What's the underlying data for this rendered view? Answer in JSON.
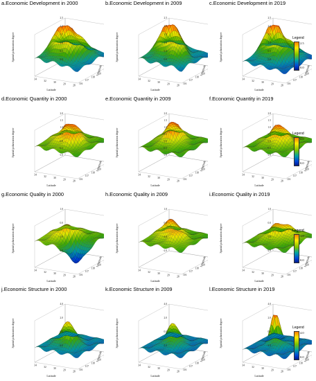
{
  "figure": {
    "panels": [
      {
        "title": "a.Economic Development in 2000",
        "z_ticks": [
          "2.5",
          "2.0",
          "1.5",
          "1.0",
          "0.5",
          "0.0"
        ]
      },
      {
        "title": "b.Economic Development in 2009",
        "z_ticks": [
          "2.5",
          "2.0",
          "1.5",
          "1.0",
          "0.5",
          "0.0"
        ]
      },
      {
        "title": "c.Economic Development in 2019",
        "z_ticks": [
          "2.5",
          "2.0",
          "1.5",
          "1.0",
          "0.5",
          "0.0"
        ]
      },
      {
        "title": "d.Economic Quantity in 2000",
        "z_ticks": [
          "2.0",
          "1.5",
          "1.0",
          "0.5",
          "0.0",
          "-0.5",
          "-1.0"
        ]
      },
      {
        "title": "e.Economic Quantity in 2009",
        "z_ticks": [
          "2.0",
          "1.5",
          "1.0",
          "0.5",
          "0.0",
          "-0.5",
          "-1.0"
        ]
      },
      {
        "title": "f.Economic Quantity in 2019",
        "z_ticks": [
          "2.0",
          "1.5",
          "1.0",
          "0.5",
          "0.0",
          "-0.5",
          "-1.0"
        ]
      },
      {
        "title": "g.Economic Quality in 2000",
        "z_ticks": [
          "1.0",
          "0.0",
          "-1.0",
          "-2.0"
        ]
      },
      {
        "title": "h.Economic Quality in 2009",
        "z_ticks": [
          "1.0",
          "0.0",
          "-1.0",
          "-2.0"
        ]
      },
      {
        "title": "i.Economic Quality in 2019",
        "z_ticks": [
          "1.0",
          "0.0",
          "-1.0",
          "-2.0"
        ]
      },
      {
        "title": "j.Economic Structure in 2000",
        "z_ticks": [
          "4.0",
          "2.0",
          "0.0",
          "-2.0"
        ]
      },
      {
        "title": "k.Economic Structure in 2009",
        "z_ticks": [
          "4.0",
          "2.0",
          "0.0",
          "-2.0"
        ]
      },
      {
        "title": "l.Economic Structure in 2019",
        "z_ticks": [
          "4.0",
          "2.0",
          "0.0",
          "-2.0"
        ]
      }
    ],
    "legends": [
      {
        "title": "Legend",
        "max": "2.5",
        "min": "0.0"
      },
      {
        "title": "Legend",
        "max": "2.0",
        "min": "0.0"
      },
      {
        "title": "Legend",
        "max": "1.0",
        "min": "0.0"
      },
      {
        "title": "Legend",
        "max": "4.0",
        "min": "0.0"
      }
    ],
    "axis_labels": {
      "z": "Spatial polarization degree",
      "x": "Latitude",
      "y": "Longitude"
    },
    "latitude_ticks": [
      "34",
      "32",
      "30",
      "29",
      "28"
    ],
    "longitude_ticks": [
      "122",
      "121",
      "120",
      "118",
      "117",
      "116"
    ]
  },
  "chart_data": [
    {
      "type": "surface",
      "title": "a.Economic Development in 2000",
      "xlabel": "Latitude",
      "ylabel": "Longitude",
      "zlabel": "Spatial polarization degree",
      "zlim": [
        0.0,
        2.5
      ],
      "color_range": [
        0.0,
        2.5
      ]
    },
    {
      "type": "surface",
      "title": "b.Economic Development in 2009",
      "xlabel": "Latitude",
      "ylabel": "Longitude",
      "zlabel": "Spatial polarization degree",
      "zlim": [
        0.0,
        2.5
      ],
      "color_range": [
        0.0,
        2.5
      ]
    },
    {
      "type": "surface",
      "title": "c.Economic Development in 2019",
      "xlabel": "Latitude",
      "ylabel": "Longitude",
      "zlabel": "Spatial polarization degree",
      "zlim": [
        0.0,
        2.5
      ],
      "color_range": [
        0.0,
        2.5
      ]
    },
    {
      "type": "surface",
      "title": "d.Economic Quantity in 2000",
      "xlabel": "Latitude",
      "ylabel": "Longitude",
      "zlabel": "Spatial polarization degree",
      "zlim": [
        -1.0,
        2.0
      ],
      "color_range": [
        0.0,
        2.0
      ]
    },
    {
      "type": "surface",
      "title": "e.Economic Quantity in 2009",
      "xlabel": "Latitude",
      "ylabel": "Longitude",
      "zlabel": "Spatial polarization degree",
      "zlim": [
        -1.0,
        2.0
      ],
      "color_range": [
        0.0,
        2.0
      ]
    },
    {
      "type": "surface",
      "title": "f.Economic Quantity in 2019",
      "xlabel": "Latitude",
      "ylabel": "Longitude",
      "zlabel": "Spatial polarization degree",
      "zlim": [
        -1.0,
        2.0
      ],
      "color_range": [
        0.0,
        2.0
      ]
    },
    {
      "type": "surface",
      "title": "g.Economic Quality in 2000",
      "xlabel": "Latitude",
      "ylabel": "Longitude",
      "zlabel": "Spatial polarization degree",
      "zlim": [
        -2.0,
        1.0
      ],
      "color_range": [
        0.0,
        1.0
      ]
    },
    {
      "type": "surface",
      "title": "h.Economic Quality in 2009",
      "xlabel": "Latitude",
      "ylabel": "Longitude",
      "zlabel": "Spatial polarization degree",
      "zlim": [
        -2.0,
        1.0
      ],
      "color_range": [
        0.0,
        1.0
      ]
    },
    {
      "type": "surface",
      "title": "i.Economic Quality in 2019",
      "xlabel": "Latitude",
      "ylabel": "Longitude",
      "zlabel": "Spatial polarization degree",
      "zlim": [
        -2.0,
        1.0
      ],
      "color_range": [
        0.0,
        1.0
      ]
    },
    {
      "type": "surface",
      "title": "j.Economic Structure in 2000",
      "xlabel": "Latitude",
      "ylabel": "Longitude",
      "zlabel": "Spatial polarization degree",
      "zlim": [
        -2.0,
        4.0
      ],
      "color_range": [
        0.0,
        4.0
      ]
    },
    {
      "type": "surface",
      "title": "k.Economic Structure in 2009",
      "xlabel": "Latitude",
      "ylabel": "Longitude",
      "zlabel": "Spatial polarization degree",
      "zlim": [
        -2.0,
        4.0
      ],
      "color_range": [
        0.0,
        4.0
      ]
    },
    {
      "type": "surface",
      "title": "l.Economic Structure in 2019",
      "xlabel": "Latitude",
      "ylabel": "Longitude",
      "zlabel": "Spatial polarization degree",
      "zlim": [
        -2.0,
        4.0
      ],
      "color_range": [
        0.0,
        4.0
      ]
    }
  ]
}
